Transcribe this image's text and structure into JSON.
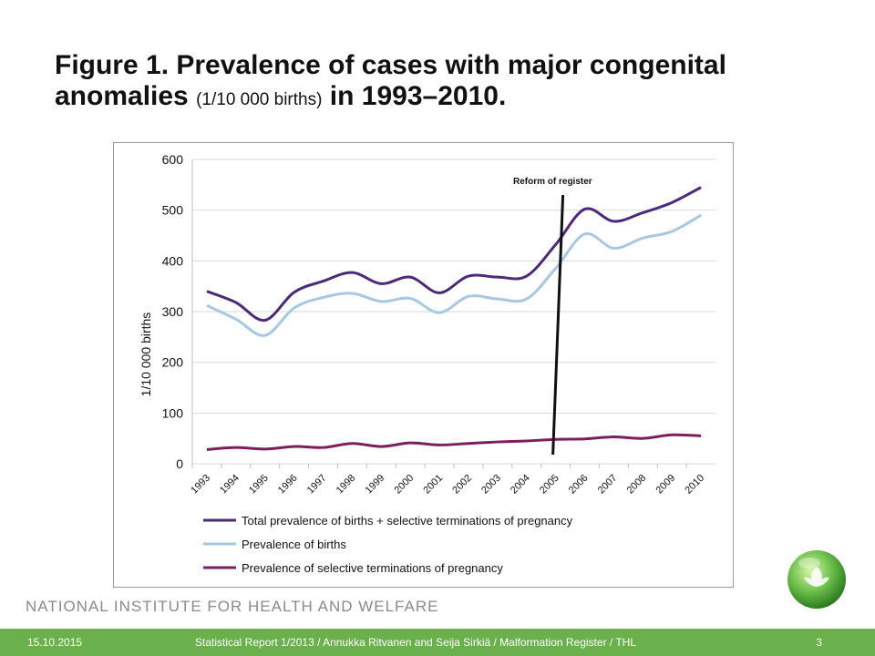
{
  "slide": {
    "title_main_1": "Figure 1. Prevalence of cases with major congenital anomalies",
    "title_small": "(1/10 000 births)",
    "title_main_2": "in 1993–2010.",
    "institute": "NATIONAL INSTITUTE FOR HEALTH AND WELFARE",
    "footer_date": "15.10.2015",
    "footer_source": "Statistical Report 1/2013 / Annukka Ritvanen and Seija Sirkiä / Malformation Register / THL",
    "page_number": "3"
  },
  "colors": {
    "total": "#4b2a7a",
    "births": "#a6c8e0",
    "terminations": "#7a1f5c",
    "footer": "#6ab04c"
  },
  "chart_data": {
    "type": "line",
    "ylabel": "1/10 000 births",
    "ylim": [
      0,
      600
    ],
    "yticks": [
      0,
      100,
      200,
      300,
      400,
      500,
      600
    ],
    "grid": true,
    "legend_placement": "bottom",
    "categories": [
      "1993",
      "1994",
      "1995",
      "1996",
      "1997",
      "1998",
      "1999",
      "2000",
      "2001",
      "2002",
      "2003",
      "2004",
      "2005",
      "2006",
      "2007",
      "2008",
      "2009",
      "2010"
    ],
    "series": [
      {
        "name": "Total prevalence of births + selective terminations of pregnancy",
        "color_key": "total",
        "values": [
          340,
          318,
          283,
          338,
          360,
          377,
          355,
          368,
          337,
          370,
          368,
          370,
          432,
          502,
          478,
          495,
          515,
          545
        ]
      },
      {
        "name": "Prevalence of births",
        "color_key": "births",
        "values": [
          312,
          285,
          253,
          307,
          328,
          336,
          320,
          326,
          298,
          330,
          325,
          325,
          385,
          453,
          425,
          445,
          458,
          490
        ]
      },
      {
        "name": "Prevalence of selective terminations of pregnancy",
        "color_key": "terminations",
        "values": [
          28,
          32,
          29,
          34,
          32,
          40,
          34,
          41,
          37,
          40,
          43,
          45,
          48,
          49,
          53,
          50,
          57,
          55
        ]
      }
    ],
    "annotation": {
      "text": "Reform of register",
      "year": "2005"
    }
  }
}
